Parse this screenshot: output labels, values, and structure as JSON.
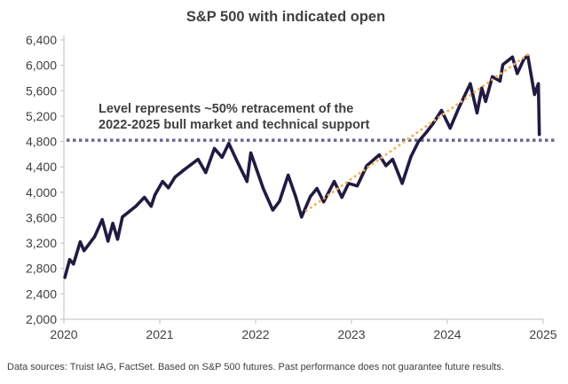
{
  "chart_data": {
    "type": "line",
    "title": "S&P 500 with indicated open",
    "xlabel": "",
    "ylabel": "",
    "xlim": [
      2020,
      2025
    ],
    "ylim": [
      2000,
      6400
    ],
    "x_ticks": [
      "2020",
      "2021",
      "2022",
      "2023",
      "2024",
      "2025"
    ],
    "y_ticks": [
      "2,000",
      "2,400",
      "2,800",
      "3,200",
      "3,600",
      "4,000",
      "4,400",
      "4,800",
      "5,200",
      "5,600",
      "6,000",
      "6,400"
    ],
    "grid": false,
    "series": [
      {
        "color": "#231a42",
        "x": [
          2020.01,
          2020.06,
          2020.1,
          2020.17,
          2020.21,
          2020.32,
          2020.4,
          2020.46,
          2020.51,
          2020.56,
          2020.61,
          2020.75,
          2020.84,
          2020.91,
          2020.95,
          2021.03,
          2021.09,
          2021.16,
          2021.25,
          2021.4,
          2021.48,
          2021.57,
          2021.65,
          2021.72,
          2021.81,
          2021.91,
          2021.95,
          2022.08,
          2022.18,
          2022.25,
          2022.34,
          2022.42,
          2022.48,
          2022.57,
          2022.64,
          2022.71,
          2022.82,
          2022.9,
          2022.97,
          2023.06,
          2023.16,
          2023.29,
          2023.36,
          2023.43,
          2023.53,
          2023.62,
          2023.7,
          2023.78,
          2023.85,
          2023.94,
          2024.03,
          2024.12,
          2024.24,
          2024.31,
          2024.36,
          2024.4,
          2024.47,
          2024.55,
          2024.58,
          2024.68,
          2024.73,
          2024.8,
          2024.84,
          2024.91,
          2024.95,
          2024.96
        ],
        "y": [
          2660,
          2940,
          2870,
          3220,
          3080,
          3300,
          3570,
          3230,
          3510,
          3260,
          3610,
          3780,
          3920,
          3780,
          3960,
          4170,
          4070,
          4240,
          4350,
          4520,
          4310,
          4690,
          4550,
          4770,
          4480,
          4170,
          4620,
          4060,
          3720,
          3860,
          4270,
          3920,
          3610,
          3930,
          4060,
          3850,
          4170,
          3920,
          4140,
          4100,
          4420,
          4590,
          4420,
          4520,
          4140,
          4560,
          4800,
          4940,
          5080,
          5290,
          5010,
          5330,
          5710,
          5250,
          5640,
          5430,
          5820,
          5750,
          6010,
          6130,
          5870,
          6100,
          6150,
          5540,
          5710,
          4910
        ]
      }
    ],
    "reference_lines": [
      {
        "kind": "horizontal",
        "y": 4820,
        "style": "dotted",
        "color": "#6a6790"
      },
      {
        "kind": "trend",
        "x": [
          2022.53,
          2024.87
        ],
        "y": [
          3710,
          6200
        ],
        "style": "dotted",
        "color": "#f0b25a"
      }
    ],
    "annotations": [
      "Level represents ~50% retracement of the",
      "2022-2025 bull market and technical support"
    ]
  },
  "footer": "Data sources: Truist IAG, FactSet. Based on S&P 500 futures. Past performance does not guarantee future results."
}
